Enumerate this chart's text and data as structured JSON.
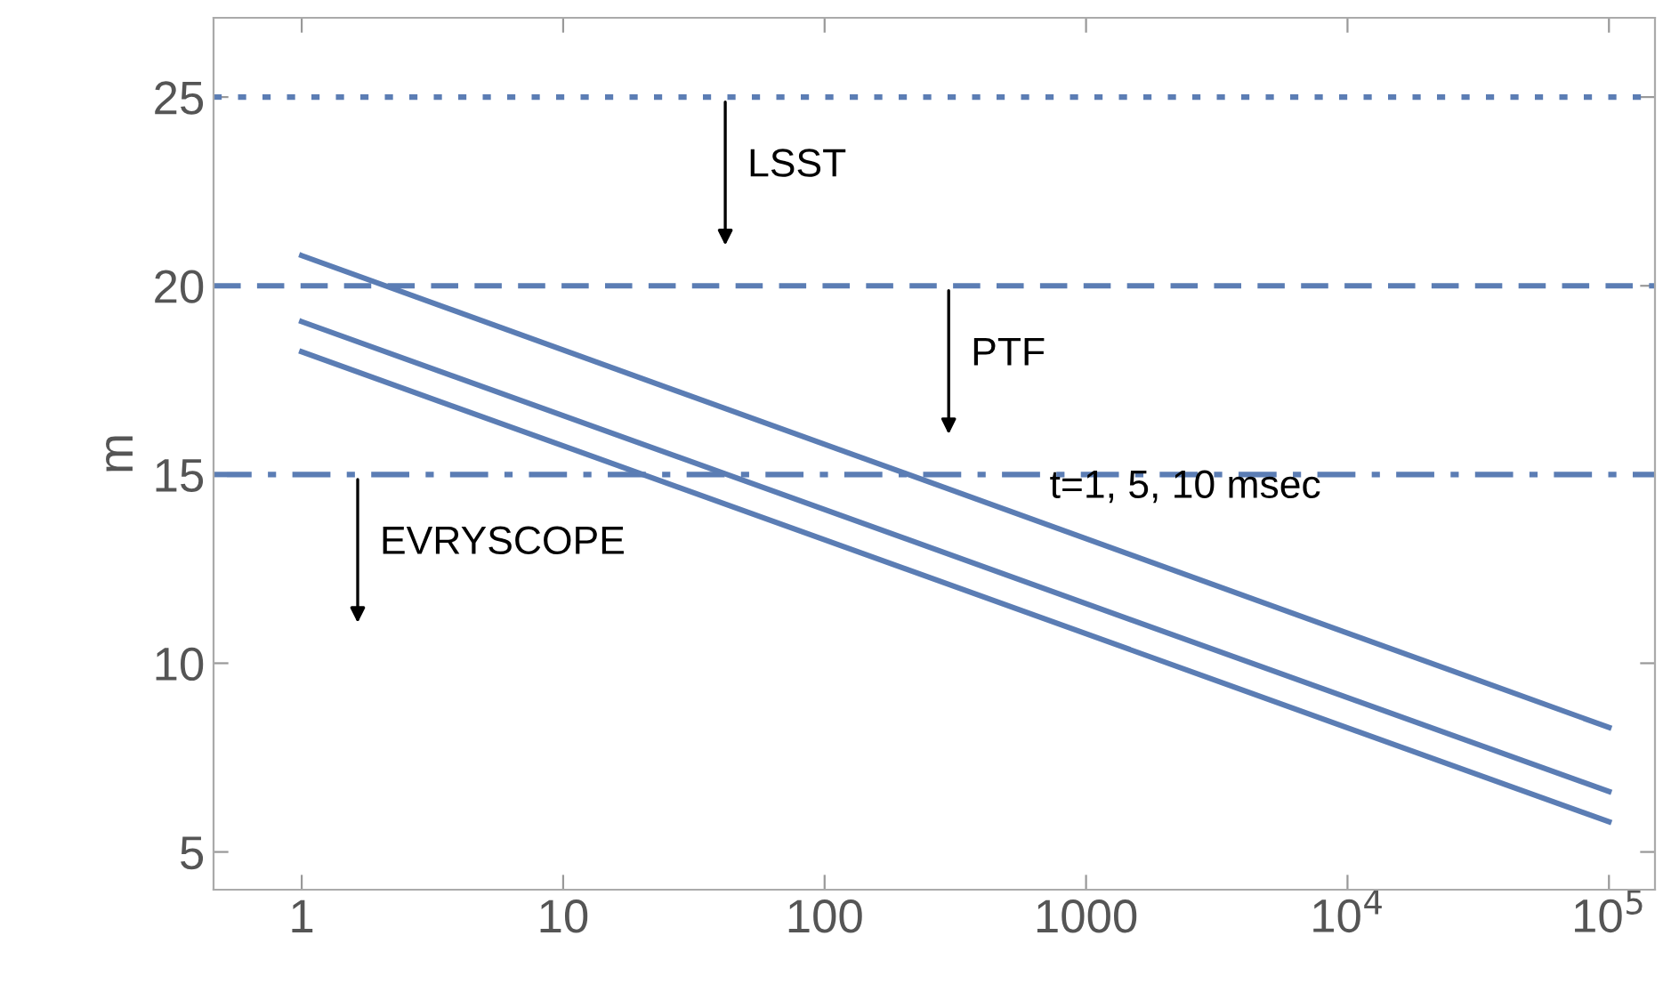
{
  "chart_data": {
    "type": "line",
    "ylabel": "m",
    "log": "x",
    "xlim": [
      0.46,
      150000
    ],
    "ylim": [
      4,
      27.1
    ],
    "xticks": [
      1,
      10,
      100,
      1000,
      {
        "value": 10000,
        "label": "10$^{4}$"
      },
      {
        "value": 100000,
        "label": "10$^{5}$"
      }
    ],
    "yticks": [
      5,
      10,
      15,
      20,
      25
    ],
    "x": [
      1,
      100000
    ],
    "series": [
      {
        "color": "#5b7db4",
        "values": [
          20.8,
          8.3
        ]
      },
      {
        "color": "#5b7db4",
        "values": [
          19.05,
          6.6
        ]
      },
      {
        "color": "#5b7db4",
        "values": [
          18.25,
          5.8
        ]
      }
    ],
    "ref_lines": [
      {
        "axis": "y",
        "value": 25,
        "color": "#5b7db4",
        "line_style": "dotted"
      },
      {
        "axis": "y",
        "value": 20,
        "color": "#5b7db4",
        "line_style": "dashed"
      },
      {
        "axis": "y",
        "value": 15,
        "color": "#5b7db4",
        "line_style": "dashdot"
      }
    ],
    "annotations": [
      "LSST",
      "PTF",
      "EVRYSCOPE",
      "t=1, 5, 10 msec"
    ],
    "grid": false,
    "line_style": "solid",
    "marker": "none",
    "legend": false
  }
}
